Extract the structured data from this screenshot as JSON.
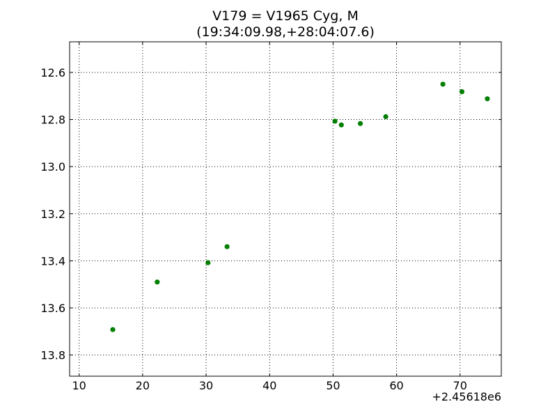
{
  "chart_data": {
    "type": "scatter",
    "title_line1": "V179 = V1965 Cyg, M",
    "title_line2": "(19:34:09.98,+28:04:07.6)",
    "xlabel": "",
    "ylabel": "",
    "x_offset_label": "+2.45618e6",
    "xlim": [
      8.5,
      76.5
    ],
    "ylim": [
      13.89,
      12.47
    ],
    "y_inverted": true,
    "grid": true,
    "x_ticks": [
      10,
      20,
      30,
      40,
      50,
      60,
      70
    ],
    "x_tick_labels": [
      "10",
      "20",
      "30",
      "40",
      "50",
      "60",
      "70"
    ],
    "y_ticks": [
      12.6,
      12.8,
      13.0,
      13.2,
      13.4,
      13.6,
      13.8
    ],
    "y_tick_labels": [
      "12.6",
      "12.8",
      "13.0",
      "13.2",
      "13.4",
      "13.6",
      "13.8"
    ],
    "series": [
      {
        "color": "#007f00",
        "marker": "circle",
        "x": [
          15.3,
          22.3,
          30.3,
          33.3,
          50.3,
          51.3,
          54.3,
          58.3,
          67.3,
          70.3,
          74.3
        ],
        "y": [
          13.692,
          13.49,
          13.408,
          13.34,
          12.807,
          12.823,
          12.817,
          12.788,
          12.65,
          12.682,
          12.712
        ]
      }
    ]
  }
}
